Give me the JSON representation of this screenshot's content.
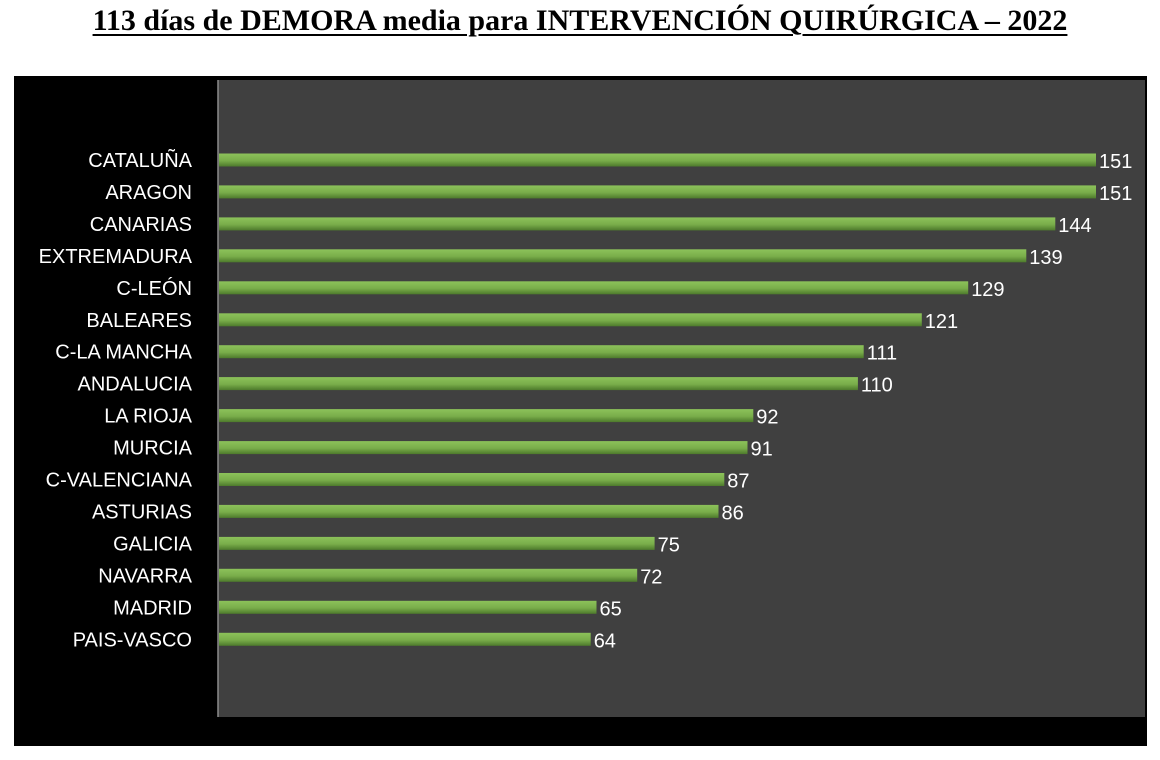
{
  "page": {
    "title": "113 días de DEMORA media para INTERVENCIÓN QUIRÚRGICA – 2022"
  },
  "colors": {
    "frame": "#000000",
    "plot_background": "#404040",
    "bar": "#79ad4a",
    "bar_shade": "#4d7a2c",
    "labels": "#ffffff"
  },
  "chart_data": {
    "type": "bar",
    "orientation": "horizontal",
    "title": "113 días de DEMORA media para INTERVENCIÓN QUIRÚRGICA – 2022",
    "xlabel": "",
    "ylabel": "",
    "xlim": [
      0,
      151
    ],
    "grid": false,
    "legend": "none",
    "categories": [
      "CATALUÑA",
      "ARAGON",
      "CANARIAS",
      "EXTREMADURA",
      "C-LEÓN",
      "BALEARES",
      "C-LA MANCHA",
      "ANDALUCIA",
      "LA RIOJA",
      "MURCIA",
      "C-VALENCIANA",
      "ASTURIAS",
      "GALICIA",
      "NAVARRA",
      "MADRID",
      "PAIS-VASCO"
    ],
    "values": [
      151,
      151,
      144,
      139,
      129,
      121,
      111,
      110,
      92,
      91,
      87,
      86,
      75,
      72,
      65,
      64
    ],
    "value_labels": [
      "151",
      "151",
      "144",
      "139",
      "129",
      "121",
      "111",
      "110",
      "92",
      "91",
      "87",
      "86",
      "75",
      "72",
      "65",
      "64"
    ]
  }
}
